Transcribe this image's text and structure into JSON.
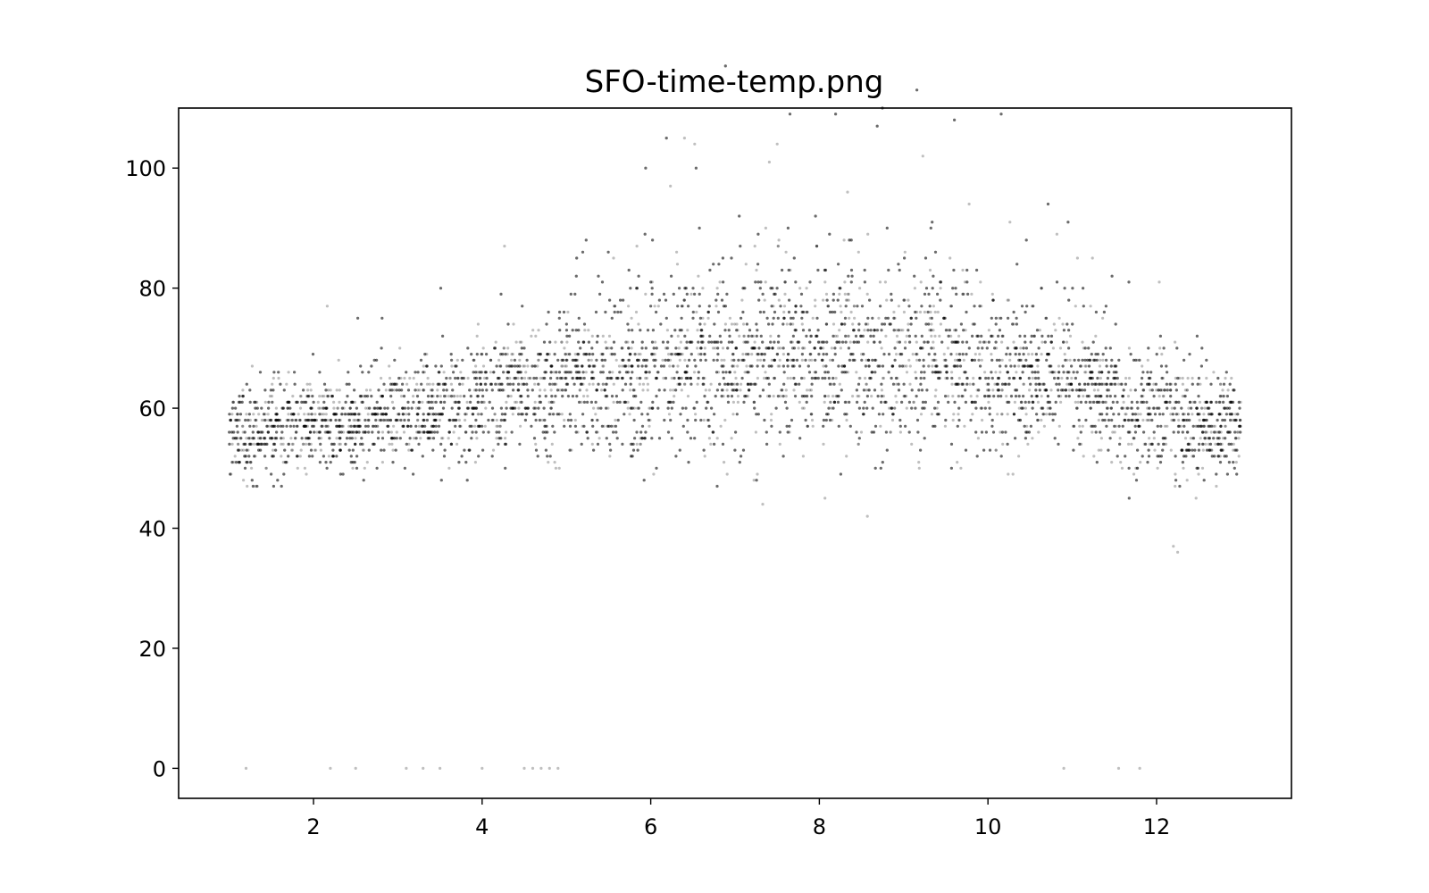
{
  "chart_data": {
    "type": "scatter",
    "title": "SFO-time-temp.png",
    "xlabel": "",
    "ylabel": "",
    "xlim": [
      0.4,
      13.6
    ],
    "ylim": [
      -5,
      110
    ],
    "x_ticks": [
      2,
      4,
      6,
      8,
      10,
      12
    ],
    "y_ticks": [
      0,
      20,
      40,
      60,
      80,
      100
    ],
    "grid": false,
    "legend": "none",
    "marker_color": "#000000",
    "marker_alpha": 0.25,
    "series": [
      {
        "x": [
          1.0,
          1.2,
          1.5,
          2.0,
          2.3,
          2.6,
          3.0,
          3.4,
          3.8,
          4.2,
          4.6,
          5.0,
          5.4,
          5.8,
          6.2,
          6.6,
          7.0,
          7.4,
          7.8,
          8.2,
          8.6,
          9.0,
          9.4,
          9.8,
          10.2,
          10.6,
          11.0,
          11.4,
          11.8,
          12.2,
          12.6,
          13.0
        ],
        "mean": [
          56,
          55,
          56,
          57,
          57,
          58,
          59,
          60,
          61,
          62,
          63,
          64,
          64,
          65,
          66,
          67,
          68,
          68,
          68,
          68,
          68,
          68,
          68,
          67,
          66,
          65,
          64,
          62,
          60,
          58,
          57,
          56
        ]
      }
    ],
    "notable_points": {
      "x": [
        1.2,
        2.2,
        2.5,
        3.1,
        3.3,
        3.5,
        4.0,
        4.5,
        4.6,
        4.7,
        4.8,
        4.9,
        6.4,
        7.5,
        10.9,
        11.55,
        11.8,
        12.2,
        12.25
      ],
      "y": [
        0,
        0,
        0,
        0,
        0,
        0,
        0,
        0,
        0,
        0,
        0,
        0,
        105,
        104,
        0,
        0,
        0,
        37,
        36
      ]
    }
  }
}
